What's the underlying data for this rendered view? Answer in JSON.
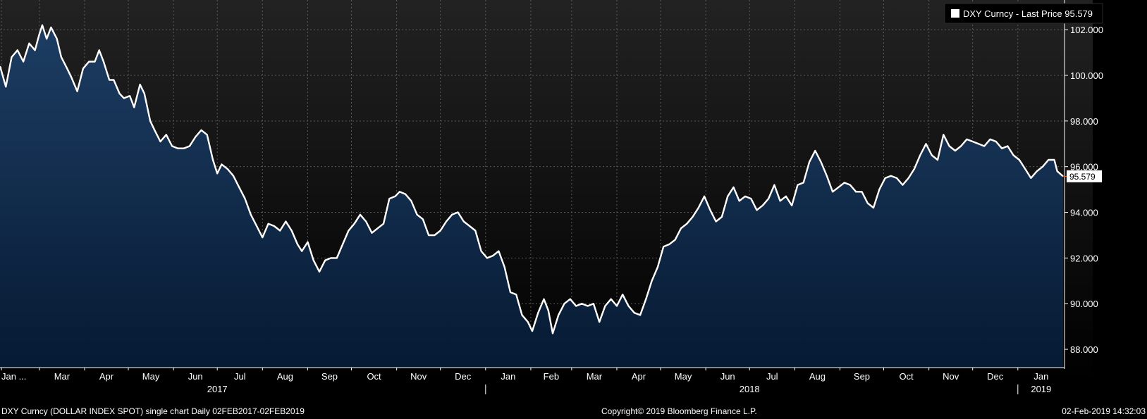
{
  "footer": {
    "left": "DXY Curncy (DOLLAR INDEX SPOT) single chart  Daily 02FEB2017-02FEB2019",
    "center": "Copyright© 2019 Bloomberg Finance L.P.",
    "right": "02-Feb-2019 14:32:03"
  },
  "chart_data": {
    "type": "area",
    "title": "",
    "xlabel": "",
    "ylabel": "",
    "legend": {
      "text": "DXY Curncy - Last Price 95.579",
      "placement": "top-right"
    },
    "last_value_label": "95.579",
    "last_value": 95.579,
    "ylim": [
      87.2,
      103.3
    ],
    "xlim": [
      "2017-02-02",
      "2019-02-02"
    ],
    "grid": true,
    "y_ticks": [
      "88.000",
      "90.000",
      "92.000",
      "94.000",
      "96.000",
      "98.000",
      "100.000",
      "102.000"
    ],
    "y_tick_values": [
      88,
      90,
      92,
      94,
      96,
      98,
      100,
      102
    ],
    "x_ticks": [
      {
        "label": "Jan ...",
        "date": "2017-02-03"
      },
      {
        "label": "Mar",
        "date": "2017-03-01"
      },
      {
        "label": "Apr",
        "date": "2017-04-01"
      },
      {
        "label": "May",
        "date": "2017-05-01"
      },
      {
        "label": "Jun",
        "date": "2017-06-01"
      },
      {
        "label": "Jul",
        "date": "2017-07-01"
      },
      {
        "label": "Aug",
        "date": "2017-08-01"
      },
      {
        "label": "Sep",
        "date": "2017-09-01"
      },
      {
        "label": "Oct",
        "date": "2017-10-01"
      },
      {
        "label": "Nov",
        "date": "2017-11-01"
      },
      {
        "label": "Dec",
        "date": "2017-12-01"
      },
      {
        "label": "Jan",
        "date": "2018-01-01"
      },
      {
        "label": "Feb",
        "date": "2018-02-01"
      },
      {
        "label": "Mar",
        "date": "2018-03-01"
      },
      {
        "label": "Apr",
        "date": "2018-04-01"
      },
      {
        "label": "May",
        "date": "2018-05-01"
      },
      {
        "label": "Jun",
        "date": "2018-06-01"
      },
      {
        "label": "Jul",
        "date": "2018-07-01"
      },
      {
        "label": "Aug",
        "date": "2018-08-01"
      },
      {
        "label": "Sep",
        "date": "2018-09-01"
      },
      {
        "label": "Oct",
        "date": "2018-10-01"
      },
      {
        "label": "Nov",
        "date": "2018-11-01"
      },
      {
        "label": "Dec",
        "date": "2018-12-01"
      },
      {
        "label": "Jan",
        "date": "2019-01-01"
      }
    ],
    "year_labels": [
      {
        "label": "2017",
        "date": "2017-07-01"
      },
      {
        "label": "2018",
        "date": "2018-07-01"
      },
      {
        "label": "2019",
        "date": "2019-01-01"
      }
    ],
    "year_separators": [
      "2018-01-01",
      "2019-01-01"
    ],
    "series": [
      {
        "name": "DXY Curncy - Last Price",
        "color": "#ffffff",
        "fill_top": "#1d3d63",
        "fill_bottom": "#061a33",
        "points": [
          [
            "2017-02-02",
            100.4
          ],
          [
            "2017-02-06",
            99.5
          ],
          [
            "2017-02-10",
            100.8
          ],
          [
            "2017-02-14",
            101.1
          ],
          [
            "2017-02-18",
            100.6
          ],
          [
            "2017-02-22",
            101.4
          ],
          [
            "2017-02-26",
            101.1
          ],
          [
            "2017-03-01",
            101.8
          ],
          [
            "2017-03-03",
            102.2
          ],
          [
            "2017-03-06",
            101.6
          ],
          [
            "2017-03-09",
            102.1
          ],
          [
            "2017-03-13",
            101.6
          ],
          [
            "2017-03-16",
            100.8
          ],
          [
            "2017-03-20",
            100.3
          ],
          [
            "2017-03-23",
            99.9
          ],
          [
            "2017-03-27",
            99.3
          ],
          [
            "2017-03-31",
            100.3
          ],
          [
            "2017-04-04",
            100.6
          ],
          [
            "2017-04-08",
            100.6
          ],
          [
            "2017-04-11",
            101.1
          ],
          [
            "2017-04-14",
            100.6
          ],
          [
            "2017-04-18",
            99.8
          ],
          [
            "2017-04-21",
            99.8
          ],
          [
            "2017-04-25",
            99.2
          ],
          [
            "2017-04-28",
            99.0
          ],
          [
            "2017-05-02",
            99.1
          ],
          [
            "2017-05-05",
            98.6
          ],
          [
            "2017-05-09",
            99.6
          ],
          [
            "2017-05-12",
            99.2
          ],
          [
            "2017-05-16",
            98.0
          ],
          [
            "2017-05-19",
            97.6
          ],
          [
            "2017-05-23",
            97.1
          ],
          [
            "2017-05-27",
            97.4
          ],
          [
            "2017-05-31",
            96.9
          ],
          [
            "2017-06-04",
            96.8
          ],
          [
            "2017-06-08",
            96.8
          ],
          [
            "2017-06-12",
            96.9
          ],
          [
            "2017-06-16",
            97.3
          ],
          [
            "2017-06-20",
            97.6
          ],
          [
            "2017-06-24",
            97.4
          ],
          [
            "2017-06-28",
            96.3
          ],
          [
            "2017-07-01",
            95.7
          ],
          [
            "2017-07-04",
            96.1
          ],
          [
            "2017-07-08",
            95.9
          ],
          [
            "2017-07-12",
            95.6
          ],
          [
            "2017-07-16",
            95.1
          ],
          [
            "2017-07-20",
            94.6
          ],
          [
            "2017-07-24",
            93.9
          ],
          [
            "2017-07-28",
            93.4
          ],
          [
            "2017-08-01",
            92.9
          ],
          [
            "2017-08-05",
            93.5
          ],
          [
            "2017-08-09",
            93.4
          ],
          [
            "2017-08-13",
            93.2
          ],
          [
            "2017-08-17",
            93.6
          ],
          [
            "2017-08-21",
            93.2
          ],
          [
            "2017-08-25",
            92.6
          ],
          [
            "2017-08-28",
            92.3
          ],
          [
            "2017-09-01",
            92.7
          ],
          [
            "2017-09-05",
            91.9
          ],
          [
            "2017-09-09",
            91.4
          ],
          [
            "2017-09-13",
            91.9
          ],
          [
            "2017-09-17",
            92.0
          ],
          [
            "2017-09-21",
            92.0
          ],
          [
            "2017-09-25",
            92.6
          ],
          [
            "2017-09-29",
            93.2
          ],
          [
            "2017-10-03",
            93.5
          ],
          [
            "2017-10-07",
            93.9
          ],
          [
            "2017-10-11",
            93.6
          ],
          [
            "2017-10-15",
            93.1
          ],
          [
            "2017-10-19",
            93.3
          ],
          [
            "2017-10-23",
            93.5
          ],
          [
            "2017-10-27",
            94.6
          ],
          [
            "2017-10-31",
            94.7
          ],
          [
            "2017-11-03",
            94.9
          ],
          [
            "2017-11-07",
            94.8
          ],
          [
            "2017-11-11",
            94.5
          ],
          [
            "2017-11-15",
            93.9
          ],
          [
            "2017-11-19",
            93.7
          ],
          [
            "2017-11-23",
            93.0
          ],
          [
            "2017-11-27",
            93.0
          ],
          [
            "2017-12-01",
            93.2
          ],
          [
            "2017-12-05",
            93.6
          ],
          [
            "2017-12-09",
            93.9
          ],
          [
            "2017-12-13",
            94.0
          ],
          [
            "2017-12-17",
            93.6
          ],
          [
            "2017-12-21",
            93.4
          ],
          [
            "2017-12-25",
            93.2
          ],
          [
            "2017-12-29",
            92.3
          ],
          [
            "2018-01-02",
            92.0
          ],
          [
            "2018-01-06",
            92.1
          ],
          [
            "2018-01-10",
            92.3
          ],
          [
            "2018-01-14",
            91.6
          ],
          [
            "2018-01-18",
            90.5
          ],
          [
            "2018-01-22",
            90.4
          ],
          [
            "2018-01-26",
            89.5
          ],
          [
            "2018-01-30",
            89.2
          ],
          [
            "2018-02-02",
            88.8
          ],
          [
            "2018-02-06",
            89.6
          ],
          [
            "2018-02-10",
            90.2
          ],
          [
            "2018-02-13",
            89.7
          ],
          [
            "2018-02-16",
            88.7
          ],
          [
            "2018-02-20",
            89.5
          ],
          [
            "2018-02-24",
            90.0
          ],
          [
            "2018-02-28",
            90.2
          ],
          [
            "2018-03-04",
            89.9
          ],
          [
            "2018-03-08",
            90.0
          ],
          [
            "2018-03-12",
            89.9
          ],
          [
            "2018-03-16",
            90.0
          ],
          [
            "2018-03-20",
            89.2
          ],
          [
            "2018-03-24",
            89.9
          ],
          [
            "2018-03-28",
            90.2
          ],
          [
            "2018-04-01",
            89.9
          ],
          [
            "2018-04-05",
            90.4
          ],
          [
            "2018-04-09",
            89.9
          ],
          [
            "2018-04-13",
            89.6
          ],
          [
            "2018-04-17",
            89.5
          ],
          [
            "2018-04-21",
            90.2
          ],
          [
            "2018-04-25",
            91.0
          ],
          [
            "2018-04-29",
            91.6
          ],
          [
            "2018-05-03",
            92.5
          ],
          [
            "2018-05-07",
            92.6
          ],
          [
            "2018-05-11",
            92.8
          ],
          [
            "2018-05-15",
            93.3
          ],
          [
            "2018-05-19",
            93.5
          ],
          [
            "2018-05-23",
            93.8
          ],
          [
            "2018-05-27",
            94.2
          ],
          [
            "2018-05-31",
            94.7
          ],
          [
            "2018-06-04",
            94.1
          ],
          [
            "2018-06-08",
            93.6
          ],
          [
            "2018-06-12",
            93.8
          ],
          [
            "2018-06-16",
            94.7
          ],
          [
            "2018-06-20",
            95.1
          ],
          [
            "2018-06-24",
            94.5
          ],
          [
            "2018-06-28",
            94.7
          ],
          [
            "2018-07-02",
            94.6
          ],
          [
            "2018-07-06",
            94.1
          ],
          [
            "2018-07-10",
            94.3
          ],
          [
            "2018-07-14",
            94.6
          ],
          [
            "2018-07-18",
            95.2
          ],
          [
            "2018-07-22",
            94.5
          ],
          [
            "2018-07-26",
            94.7
          ],
          [
            "2018-07-30",
            94.3
          ],
          [
            "2018-08-03",
            95.2
          ],
          [
            "2018-08-07",
            95.3
          ],
          [
            "2018-08-11",
            96.2
          ],
          [
            "2018-08-15",
            96.7
          ],
          [
            "2018-08-19",
            96.2
          ],
          [
            "2018-08-23",
            95.6
          ],
          [
            "2018-08-27",
            94.9
          ],
          [
            "2018-08-31",
            95.1
          ],
          [
            "2018-09-04",
            95.3
          ],
          [
            "2018-09-08",
            95.2
          ],
          [
            "2018-09-12",
            94.9
          ],
          [
            "2018-09-16",
            94.9
          ],
          [
            "2018-09-20",
            94.4
          ],
          [
            "2018-09-24",
            94.2
          ],
          [
            "2018-09-28",
            95.0
          ],
          [
            "2018-10-02",
            95.5
          ],
          [
            "2018-10-06",
            95.6
          ],
          [
            "2018-10-10",
            95.5
          ],
          [
            "2018-10-14",
            95.2
          ],
          [
            "2018-10-18",
            95.5
          ],
          [
            "2018-10-22",
            95.9
          ],
          [
            "2018-10-26",
            96.5
          ],
          [
            "2018-10-30",
            97.0
          ],
          [
            "2018-11-03",
            96.5
          ],
          [
            "2018-11-07",
            96.3
          ],
          [
            "2018-11-11",
            97.4
          ],
          [
            "2018-11-15",
            96.9
          ],
          [
            "2018-11-19",
            96.7
          ],
          [
            "2018-11-23",
            96.9
          ],
          [
            "2018-11-27",
            97.2
          ],
          [
            "2018-12-01",
            97.1
          ],
          [
            "2018-12-05",
            97.0
          ],
          [
            "2018-12-09",
            96.9
          ],
          [
            "2018-12-13",
            97.2
          ],
          [
            "2018-12-17",
            97.1
          ],
          [
            "2018-12-21",
            96.8
          ],
          [
            "2018-12-25",
            96.9
          ],
          [
            "2018-12-29",
            96.5
          ],
          [
            "2019-01-02",
            96.3
          ],
          [
            "2019-01-06",
            95.9
          ],
          [
            "2019-01-10",
            95.5
          ],
          [
            "2019-01-14",
            95.8
          ],
          [
            "2019-01-18",
            96.0
          ],
          [
            "2019-01-22",
            96.3
          ],
          [
            "2019-01-26",
            96.3
          ],
          [
            "2019-01-28",
            95.8
          ],
          [
            "2019-02-01",
            95.579
          ]
        ]
      }
    ]
  }
}
